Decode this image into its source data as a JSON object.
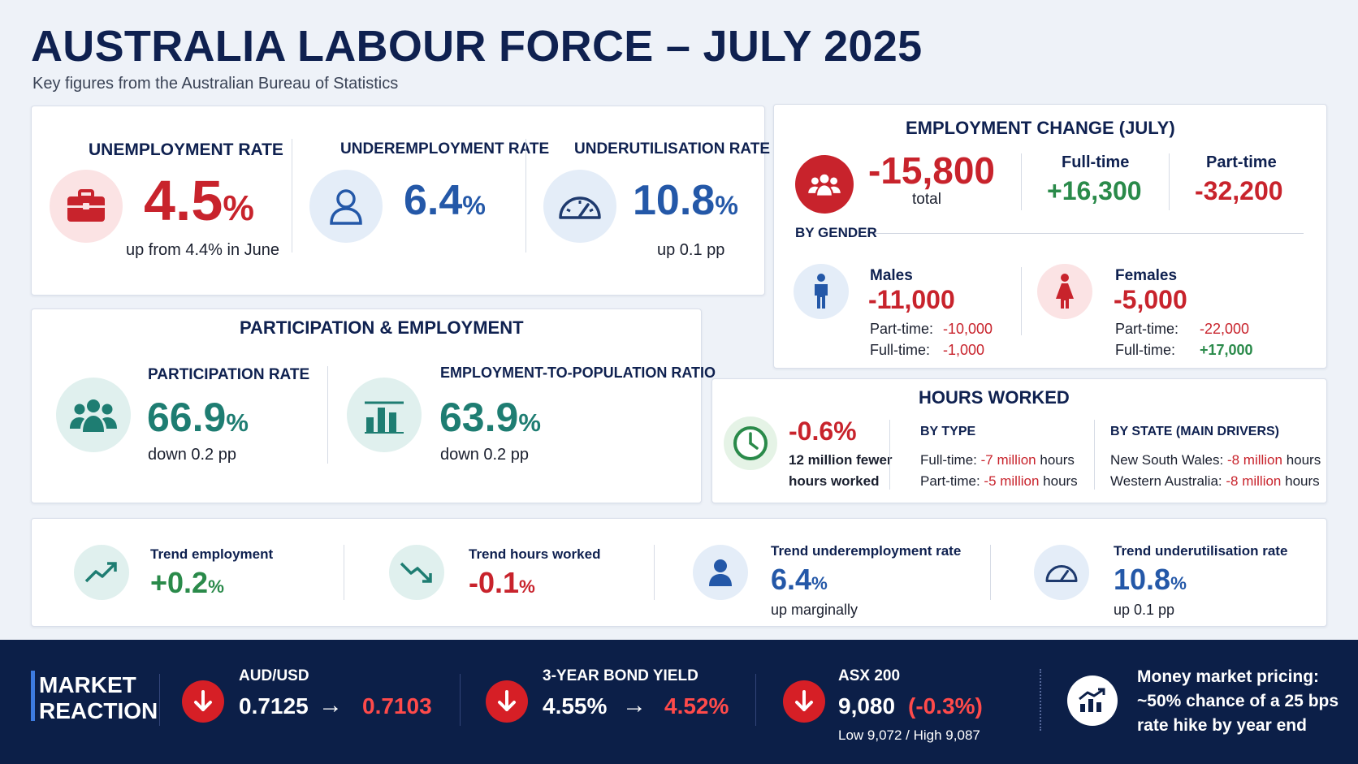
{
  "header": {
    "title": "AUSTRALIA LABOUR FORCE – JULY 2025",
    "subtitle": "Key figures from the Australian Bureau of Statistics"
  },
  "rates": {
    "unemployment": {
      "label": "UNEMPLOYMENT RATE",
      "value": "4.5",
      "unit": "%",
      "note": "up from 4.4% in June",
      "icon": "briefcase-icon"
    },
    "underemployment": {
      "label": "UNDEREMPLOYMENT RATE",
      "value": "6.4",
      "unit": "%",
      "icon": "person-icon"
    },
    "underutilisation": {
      "label": "UNDERUTILISATION RATE",
      "value": "10.8",
      "unit": "%",
      "note": "up 0.1 pp",
      "icon": "gauge-icon"
    }
  },
  "participation": {
    "title": "PARTICIPATION & EMPLOYMENT",
    "participation_rate": {
      "label": "PARTICIPATION RATE",
      "value": "66.9",
      "unit": "%",
      "note": "down 0.2 pp",
      "icon": "group-icon"
    },
    "emp_pop_ratio": {
      "label": "EMPLOYMENT-TO-POPULATION RATIO",
      "value": "63.9",
      "unit": "%",
      "note": "down 0.2 pp",
      "icon": "bar-chart-icon"
    }
  },
  "employment_change": {
    "title": "EMPLOYMENT CHANGE (JULY)",
    "total": "-15,800",
    "total_label": "total",
    "fulltime_label": "Full-time",
    "fulltime": "+16,300",
    "parttime_label": "Part-time",
    "parttime": "-32,200",
    "by_gender_label": "BY GENDER",
    "males": {
      "label": "Males",
      "value": "-11,000",
      "pt_label": "Part-time:",
      "pt": "-10,000",
      "ft_label": "Full-time:",
      "ft": "-1,000"
    },
    "females": {
      "label": "Females",
      "value": "-5,000",
      "pt_label": "Part-time:",
      "pt": "-22,000",
      "ft_label": "Full-time:",
      "ft": "+17,000"
    }
  },
  "hours": {
    "title": "HOURS WORKED",
    "value": "-0.6%",
    "note1": "12 million fewer",
    "note2": "hours worked",
    "by_type_label": "BY TYPE",
    "ft_prefix": "Full-time: ",
    "ft_value": "-7 million",
    "pt_prefix": "Part-time: ",
    "pt_value": "-5 million",
    "hours_suffix": " hours",
    "by_state_label": "BY STATE (MAIN DRIVERS)",
    "nsw_prefix": "New South Wales: ",
    "nsw_value": "-8 million",
    "wa_prefix": "Western Australia: ",
    "wa_value": "-8 million"
  },
  "trend": {
    "employment": {
      "label": "Trend employment",
      "value": "+0.2",
      "unit": "%"
    },
    "hours": {
      "label": "Trend hours worked",
      "value": "-0.1",
      "unit": "%"
    },
    "underemployment": {
      "label": "Trend underemployment rate",
      "value": "6.4",
      "unit": "%",
      "note": "up marginally"
    },
    "underutilisation": {
      "label": "Trend underutilisation rate",
      "value": "10.8",
      "unit": "%",
      "note": "up 0.1 pp"
    }
  },
  "market": {
    "title_line1": "MARKET",
    "title_line2": "REACTION",
    "audusd": {
      "label": "AUD/USD",
      "from": "0.7125",
      "arrow": "→",
      "to": "0.7103"
    },
    "bond": {
      "label": "3-YEAR BOND YIELD",
      "from": "4.55%",
      "arrow": "→",
      "to": "4.52%"
    },
    "asx": {
      "label": "ASX 200",
      "value": "9,080",
      "change": "(-0.3%)",
      "range": "Low 9,072 / High 9,087"
    },
    "money_market": {
      "line1": "Money market pricing:",
      "line2": "~50% chance of a 25 bps",
      "line3": "rate hike by year end"
    }
  },
  "colors": {
    "navy": "#0f2150",
    "red": "#c8232c",
    "green": "#2a8a4a",
    "blue": "#2458a8",
    "teal": "#1e7d72",
    "market_bg": "#0c1f48"
  }
}
